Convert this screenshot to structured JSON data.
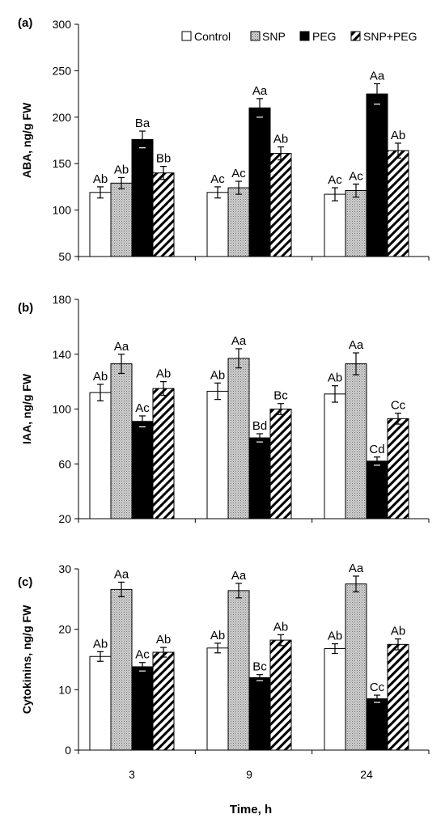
{
  "legend": [
    "Control",
    "SNP",
    "PEG",
    "SNP+PEG"
  ],
  "colors": {
    "axis": "#000000",
    "control": "#ffffff",
    "snp": "#bdbdbd",
    "peg": "#000000"
  },
  "x_title": "Time, h",
  "chart_data": [
    {
      "type": "bar",
      "panel_label": "(a)",
      "ylabel": "ABA, ng/g FW",
      "xlabel": "Time, h",
      "categories": [
        "3",
        "9",
        "24"
      ],
      "ylim": [
        50,
        300
      ],
      "yticks": [
        50,
        100,
        150,
        200,
        250,
        300
      ],
      "legend_position": "top-right",
      "series": [
        {
          "name": "Control",
          "values": [
            119,
            119,
            117
          ],
          "errors": [
            6,
            6,
            7
          ],
          "labels": [
            "Ab",
            "Ac",
            "Ac"
          ]
        },
        {
          "name": "SNP",
          "values": [
            129,
            124,
            121
          ],
          "errors": [
            6,
            7,
            7
          ],
          "labels": [
            "Ab",
            "Ac",
            "Ac"
          ]
        },
        {
          "name": "PEG",
          "values": [
            176,
            210,
            225
          ],
          "errors": [
            9,
            10,
            11
          ],
          "labels": [
            "Ba",
            "Aa",
            "Aa"
          ]
        },
        {
          "name": "SNP+PEG",
          "values": [
            140,
            161,
            164
          ],
          "errors": [
            7,
            7,
            8
          ],
          "labels": [
            "Bb",
            "Ab",
            "Ab"
          ]
        }
      ]
    },
    {
      "type": "bar",
      "panel_label": "(b)",
      "ylabel": "IAA, ng/g FW",
      "xlabel": "Time, h",
      "categories": [
        "3",
        "9",
        "24"
      ],
      "ylim": [
        20,
        180
      ],
      "yticks": [
        20,
        60,
        100,
        140,
        180
      ],
      "series": [
        {
          "name": "Control",
          "values": [
            112,
            113,
            111
          ],
          "errors": [
            6,
            6,
            6
          ],
          "labels": [
            "Ab",
            "Ab",
            "Ab"
          ]
        },
        {
          "name": "SNP",
          "values": [
            133,
            137,
            133
          ],
          "errors": [
            7,
            7,
            8
          ],
          "labels": [
            "Aa",
            "Aa",
            "Aa"
          ]
        },
        {
          "name": "PEG",
          "values": [
            91,
            79,
            62
          ],
          "errors": [
            4,
            3,
            3
          ],
          "labels": [
            "Ac",
            "Bd",
            "Cd"
          ]
        },
        {
          "name": "SNP+PEG",
          "values": [
            115,
            100,
            93
          ],
          "errors": [
            5,
            4,
            4
          ],
          "labels": [
            "Ab",
            "Bc",
            "Cc"
          ]
        }
      ]
    },
    {
      "type": "bar",
      "panel_label": "(c)",
      "ylabel": "Cytokinins, ng/g FW",
      "xlabel": "Time, h",
      "categories": [
        "3",
        "9",
        "24"
      ],
      "ylim": [
        0,
        30
      ],
      "yticks": [
        0,
        10,
        20,
        30
      ],
      "series": [
        {
          "name": "Control",
          "values": [
            15.5,
            16.9,
            16.8
          ],
          "errors": [
            0.8,
            0.8,
            0.8
          ],
          "labels": [
            "Ab",
            "Ab",
            "Ab"
          ]
        },
        {
          "name": "SNP",
          "values": [
            26.6,
            26.4,
            27.5
          ],
          "errors": [
            1.2,
            1.2,
            1.3
          ],
          "labels": [
            "Aa",
            "Aa",
            "Aa"
          ]
        },
        {
          "name": "PEG",
          "values": [
            13.8,
            12.0,
            8.5
          ],
          "errors": [
            0.7,
            0.5,
            0.6
          ],
          "labels": [
            "Ac",
            "Bc",
            "Cc"
          ]
        },
        {
          "name": "SNP+PEG",
          "values": [
            16.2,
            18.2,
            17.5
          ],
          "errors": [
            0.8,
            0.9,
            0.9
          ],
          "labels": [
            "Ab",
            "Ab",
            "Ab"
          ]
        }
      ]
    }
  ]
}
